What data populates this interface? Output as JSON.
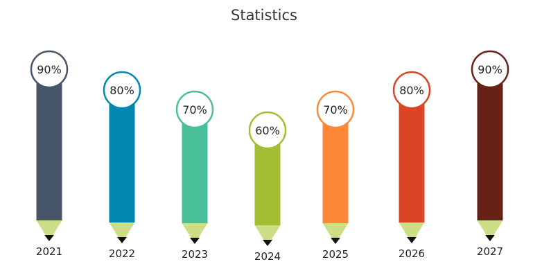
{
  "chart_data": {
    "type": "bar",
    "title": "Statistics",
    "categories": [
      "2021",
      "2022",
      "2023",
      "2024",
      "2025",
      "2026",
      "2027"
    ],
    "values": [
      90,
      80,
      70,
      60,
      70,
      80,
      90
    ],
    "value_labels": [
      "90%",
      "80%",
      "70%",
      "60%",
      "70%",
      "80%",
      "90%"
    ],
    "colors": [
      "#475569",
      "#0088B0",
      "#47C09A",
      "#A2BE32",
      "#FB8838",
      "#DA4526",
      "#672115"
    ],
    "tip_color": "#CCDF86",
    "lead_color": "#111111",
    "xlabel": "",
    "ylabel": "",
    "ylim": [
      0,
      100
    ],
    "grid": false,
    "legend": "none"
  }
}
